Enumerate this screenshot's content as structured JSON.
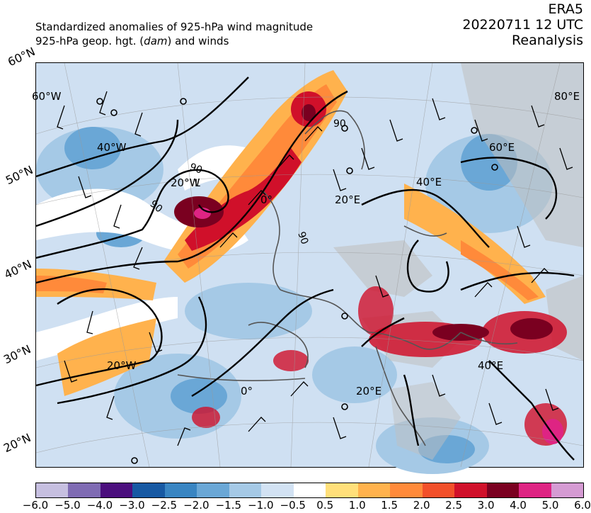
{
  "header": {
    "left_line1": "Standardized anomalies of 925-hPa wind magnitude",
    "left_line2_pre": "925-hPa geop. hgt. (",
    "left_line2_unit": "dam",
    "left_line2_post": ") and winds",
    "right_line1": "ERA5",
    "right_line2": "20220711 12 UTC",
    "right_line3": "Reanalysis"
  },
  "map": {
    "lat_labels": [
      "60°N",
      "50°N",
      "40°N",
      "30°N",
      "20°N"
    ],
    "lon_labels_inside": [
      "60°W",
      "40°W",
      "20°W",
      "0°",
      "20°E",
      "40°E",
      "60°E",
      "80°E",
      "20°W",
      "0°",
      "20°E",
      "40°E"
    ],
    "contour_labels": [
      "90",
      "90",
      "90",
      "90"
    ],
    "low_marker": "L"
  },
  "colorbar": {
    "ticks": [
      "−6.0",
      "−5.0",
      "−4.0",
      "−3.0",
      "−2.5",
      "−2.0",
      "−1.5",
      "−1.0",
      "−0.5",
      "0.5",
      "1.0",
      "1.5",
      "2.0",
      "2.5",
      "3.0",
      "4.0",
      "5.0",
      "6.0"
    ],
    "colors": [
      "#c6bfe0",
      "#7f6bb3",
      "#4b0f7d",
      "#1759a3",
      "#3985c2",
      "#6aa7d6",
      "#a5c9e6",
      "#d2e2f3",
      "#ffffff",
      "#ffdf7a",
      "#ffb24d",
      "#ff8a3a",
      "#f2502a",
      "#d0102a",
      "#7a0020",
      "#de2483",
      "#d59bd3"
    ]
  }
}
